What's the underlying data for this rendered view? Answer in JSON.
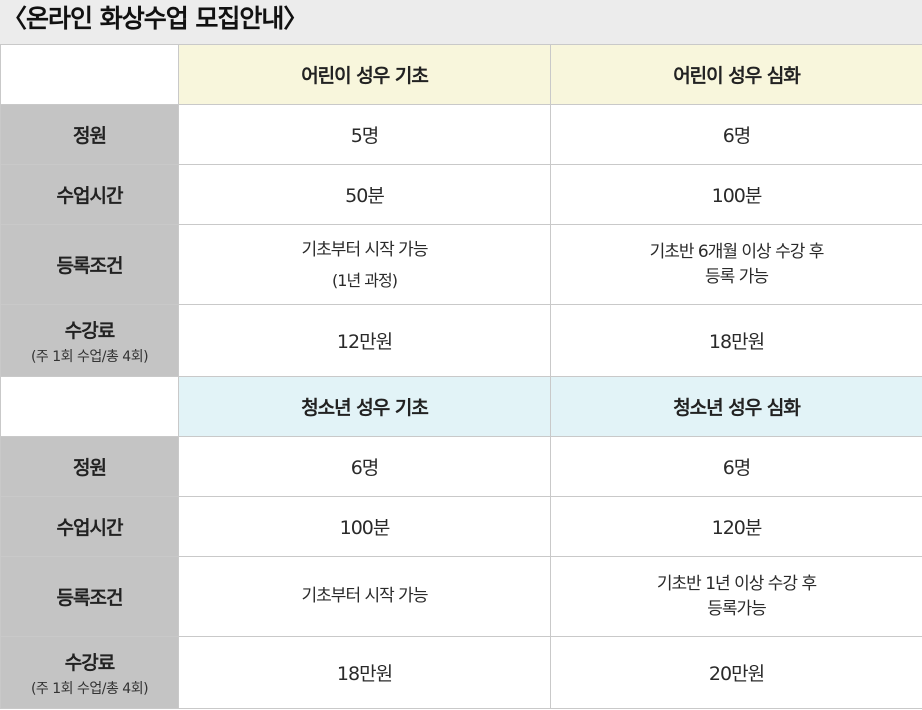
{
  "title": "〈온라인 화상수업 모집안내〉",
  "sections": [
    {
      "headers": [
        "어린이 성우 기초",
        "어린이 성우 심화"
      ],
      "rows": {
        "capacity": {
          "label": "정원",
          "values": [
            "5명",
            "6명"
          ]
        },
        "duration": {
          "label": "수업시간",
          "values": [
            "50분",
            "100분"
          ]
        },
        "condition": {
          "label": "등록조건",
          "col1": {
            "line1": "기초부터 시작 가능",
            "line2": "(1년 과정)"
          },
          "col2": {
            "line1": "기초반 6개월 이상 수강 후",
            "line2": "등록 가능"
          }
        },
        "fee": {
          "label": "수강료",
          "sublabel": "(주 1회 수업/총 4회)",
          "values": [
            "12만원",
            "18만원"
          ]
        }
      }
    },
    {
      "headers": [
        "청소년 성우 기초",
        "청소년 성우 심화"
      ],
      "rows": {
        "capacity": {
          "label": "정원",
          "values": [
            "6명",
            "6명"
          ]
        },
        "duration": {
          "label": "수업시간",
          "values": [
            "100분",
            "120분"
          ]
        },
        "condition": {
          "label": "등록조건",
          "col1": {
            "line1": "기초부터 시작 가능"
          },
          "col2": {
            "line1": "기초반 1년 이상 수강 후",
            "line2": "등록가능"
          }
        },
        "fee": {
          "label": "수강료",
          "sublabel": "(주 1회 수업/총 4회)",
          "values": [
            "18만원",
            "20만원"
          ]
        }
      }
    }
  ],
  "colors": {
    "label_bg": "#c4c4c4",
    "kids_header_bg": "#f8f6dc",
    "teen_header_bg": "#e2f3f7",
    "title_bg": "#ececec"
  }
}
